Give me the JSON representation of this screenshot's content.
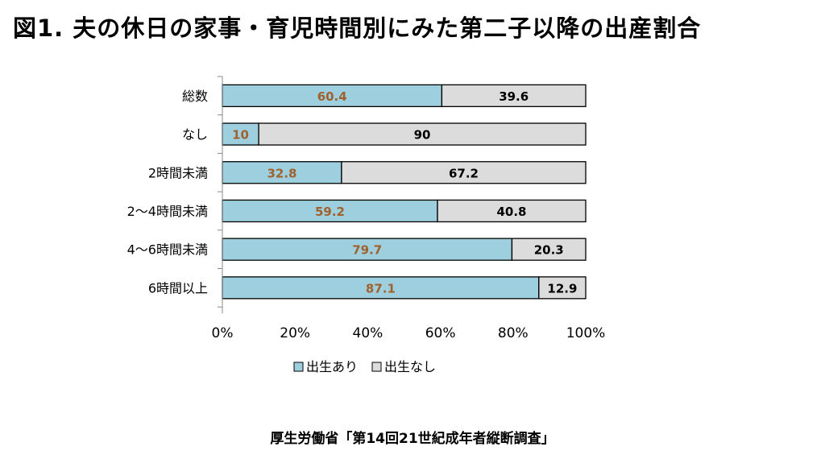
{
  "figure": {
    "title": "図1. 夫の休日の家事・育児時間別にみた第二子以降の出産割合",
    "source": "厚生労働省「第14回21世紀成年者縦断調査」"
  },
  "chart_data": {
    "type": "bar",
    "orientation": "horizontal",
    "stacked": true,
    "categories": [
      "総数",
      "なし",
      "2時間未満",
      "2～4時間未満",
      "4～6時間未満",
      "6時間以上"
    ],
    "series": [
      {
        "name": "出生あり",
        "values": [
          60.4,
          10,
          32.8,
          59.2,
          79.7,
          87.1
        ],
        "color": "#9ecfdf",
        "label_color": "#a0622d"
      },
      {
        "name": "出生なし",
        "values": [
          39.6,
          90,
          67.2,
          40.8,
          20.3,
          12.9
        ],
        "color": "#dcdcdc",
        "label_color": "#000000"
      }
    ],
    "xlim": [
      0,
      100
    ],
    "xticks": [
      "0%",
      "20%",
      "40%",
      "60%",
      "80%",
      "100%"
    ],
    "legend": "bottom",
    "grid": false
  }
}
